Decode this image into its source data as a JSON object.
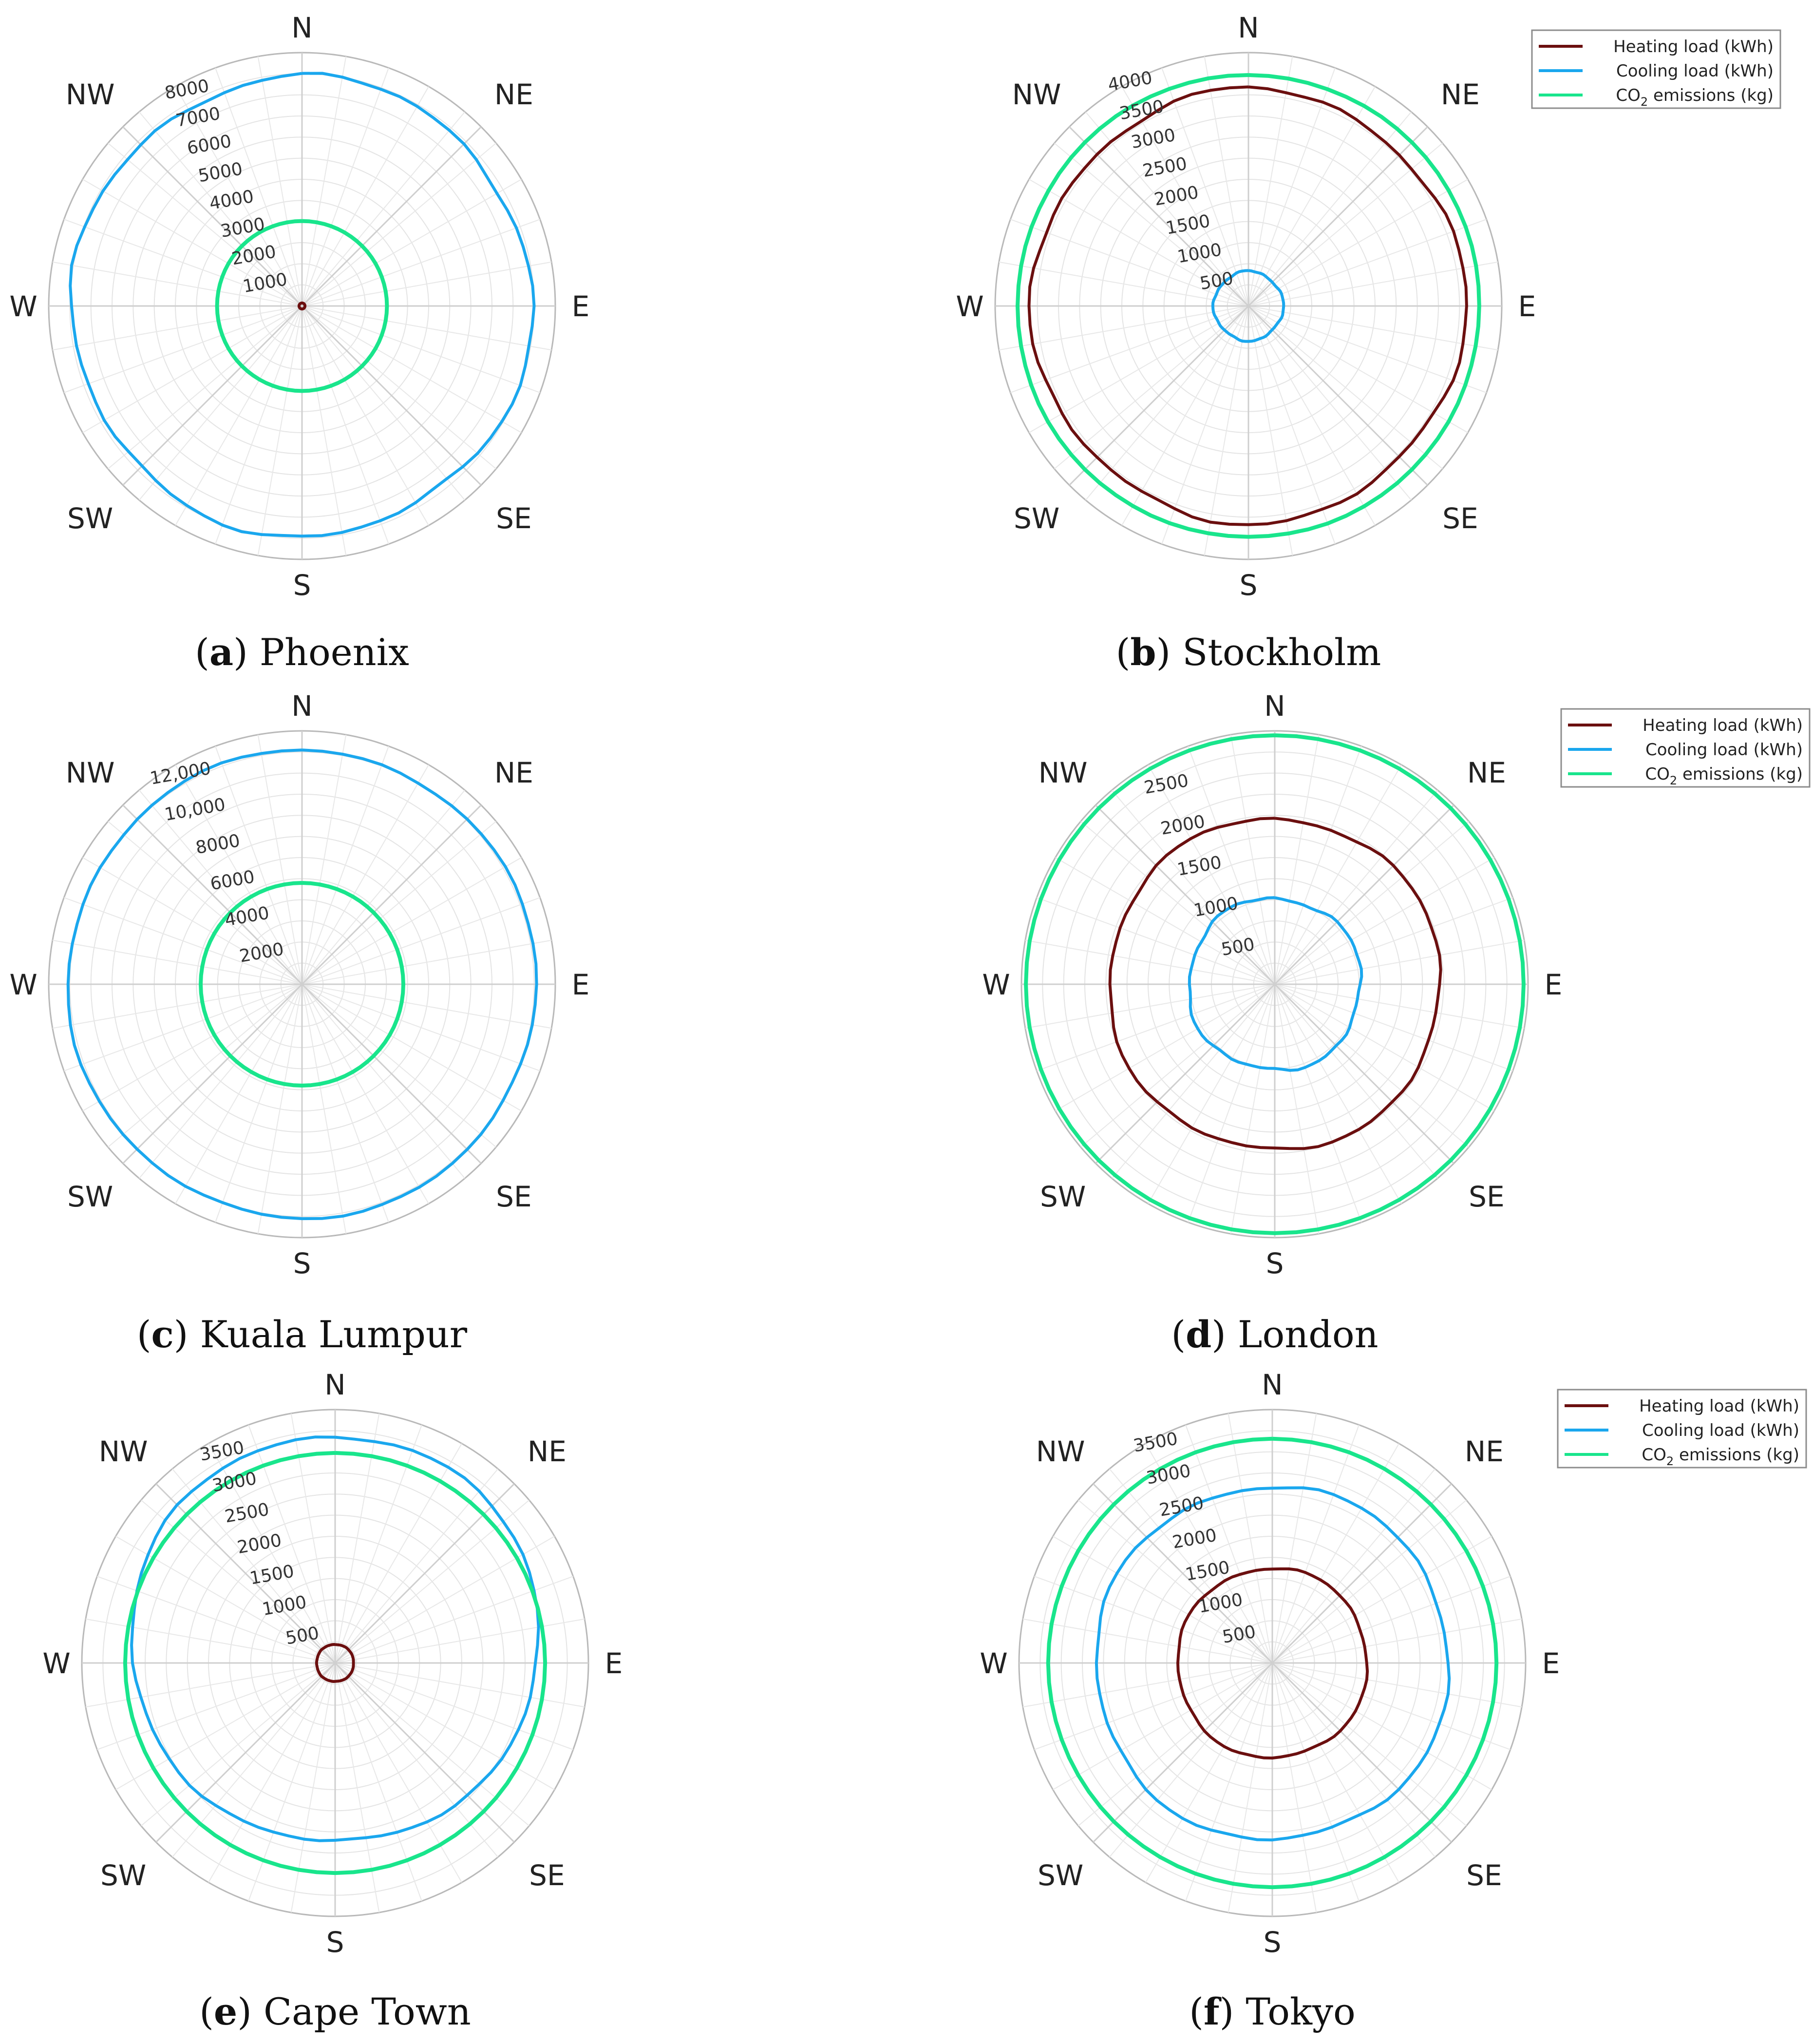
{
  "figure": {
    "legend": [
      {
        "key": "heating",
        "label": "Heating load (kWh)",
        "color": "#6b0f0f"
      },
      {
        "key": "cooling",
        "label": "Cooling load (kWh)",
        "color": "#1aa7ee"
      },
      {
        "key": "co2",
        "label_main": "CO",
        "label_sub": "2",
        "label_rest": " emissions (kg)",
        "color": "#19e58c"
      }
    ],
    "directions": [
      "N",
      "NE",
      "E",
      "SE",
      "S",
      "SW",
      "W",
      "NW"
    ]
  },
  "chart_data": [
    {
      "type": "polar-line",
      "panel_letter": "a",
      "city": "Phoenix",
      "rlim": [
        0,
        8500
      ],
      "ticks": [
        1000,
        2000,
        3000,
        4000,
        5000,
        6000,
        7000,
        8000
      ],
      "tick_labels": [
        "1000",
        "2000",
        "3000",
        "4000",
        "5000",
        "6000",
        "7000",
        "8000"
      ],
      "show_legend": false,
      "series": [
        {
          "key": "heating",
          "name": "Heating load (kWh)",
          "base": 100,
          "amp": 0
        },
        {
          "key": "cooling",
          "name": "Cooling load (kWh)",
          "base": 7700,
          "amp": 0.02
        },
        {
          "key": "co2",
          "name": "CO2 emissions (kg)",
          "base": 2850,
          "amp": 0
        }
      ]
    },
    {
      "type": "polar-line",
      "panel_letter": "b",
      "city": "Stockholm",
      "rlim": [
        0,
        4100
      ],
      "ticks": [
        500,
        1000,
        1500,
        2000,
        2500,
        3000,
        3500,
        4000
      ],
      "tick_labels": [
        "500",
        "1000",
        "1500",
        "2000",
        "2500",
        "3000",
        "3500",
        "4000"
      ],
      "show_legend": true,
      "series": [
        {
          "key": "heating",
          "name": "Heating load (kWh)",
          "base": 3500,
          "amp": 0.02
        },
        {
          "key": "cooling",
          "name": "Cooling load (kWh)",
          "base": 560,
          "amp": 0.04
        },
        {
          "key": "co2",
          "name": "CO2 emissions (kg)",
          "base": 3740,
          "amp": 0.002
        }
      ]
    },
    {
      "type": "polar-line",
      "panel_letter": "c",
      "city": "Kuala Lumpur",
      "rlim": [
        0,
        13000
      ],
      "ticks": [
        2000,
        4000,
        6000,
        8000,
        10000,
        12000
      ],
      "tick_labels": [
        "2000",
        "4000",
        "6000",
        "8000",
        "10,000",
        "12,000"
      ],
      "show_legend": false,
      "series": [
        {
          "key": "cooling",
          "name": "Cooling load (kWh)",
          "base": 12000,
          "amp": 0.008
        },
        {
          "key": "co2",
          "name": "CO2 emissions (kg)",
          "base": 5200,
          "amp": 0
        }
      ]
    },
    {
      "type": "polar-line",
      "panel_letter": "d",
      "city": "London",
      "rlim": [
        0,
        2870
      ],
      "ticks": [
        500,
        1000,
        1500,
        2000,
        2500
      ],
      "tick_labels": [
        "500",
        "1000",
        "1500",
        "2000",
        "2500"
      ],
      "show_legend": true,
      "series": [
        {
          "key": "heating",
          "name": "Heating load (kWh)",
          "base": 1880,
          "amp": 0.02
        },
        {
          "key": "cooling",
          "name": "Cooling load (kWh)",
          "base": 980,
          "amp": 0.04
        },
        {
          "key": "co2",
          "name": "CO2 emissions (kg)",
          "base": 2820,
          "amp": 0
        }
      ]
    },
    {
      "type": "polar-line",
      "panel_letter": "e",
      "city": "Cape Town",
      "rlim": [
        0,
        3800
      ],
      "ticks": [
        500,
        1000,
        1500,
        2000,
        2500,
        3000,
        3500
      ],
      "tick_labels": [
        "500",
        "1000",
        "1500",
        "2000",
        "2500",
        "3000",
        "3500"
      ],
      "show_legend": false,
      "series": [
        {
          "key": "heating",
          "name": "Heating load (kWh)",
          "base": 280,
          "amp": 0.02
        },
        {
          "key": "cooling",
          "name": "Cooling load (kWh)",
          "base": 3050,
          "amp": 0.015,
          "north_bias": 0.12
        },
        {
          "key": "co2",
          "name": "CO2 emissions (kg)",
          "base": 3150,
          "amp": 0
        }
      ]
    },
    {
      "type": "polar-line",
      "panel_letter": "f",
      "city": "Tokyo",
      "rlim": [
        0,
        3650
      ],
      "ticks": [
        500,
        1000,
        1500,
        2000,
        2500,
        3000,
        3500
      ],
      "tick_labels": [
        "500",
        "1000",
        "1500",
        "2000",
        "2500",
        "3000",
        "3500"
      ],
      "show_legend": true,
      "series": [
        {
          "key": "heating",
          "name": "Heating load (kWh)",
          "base": 1370,
          "amp": 0.02
        },
        {
          "key": "cooling",
          "name": "Cooling load (kWh)",
          "base": 2550,
          "amp": 0.02
        },
        {
          "key": "co2",
          "name": "CO2 emissions (kg)",
          "base": 3230,
          "amp": 0
        }
      ]
    }
  ]
}
